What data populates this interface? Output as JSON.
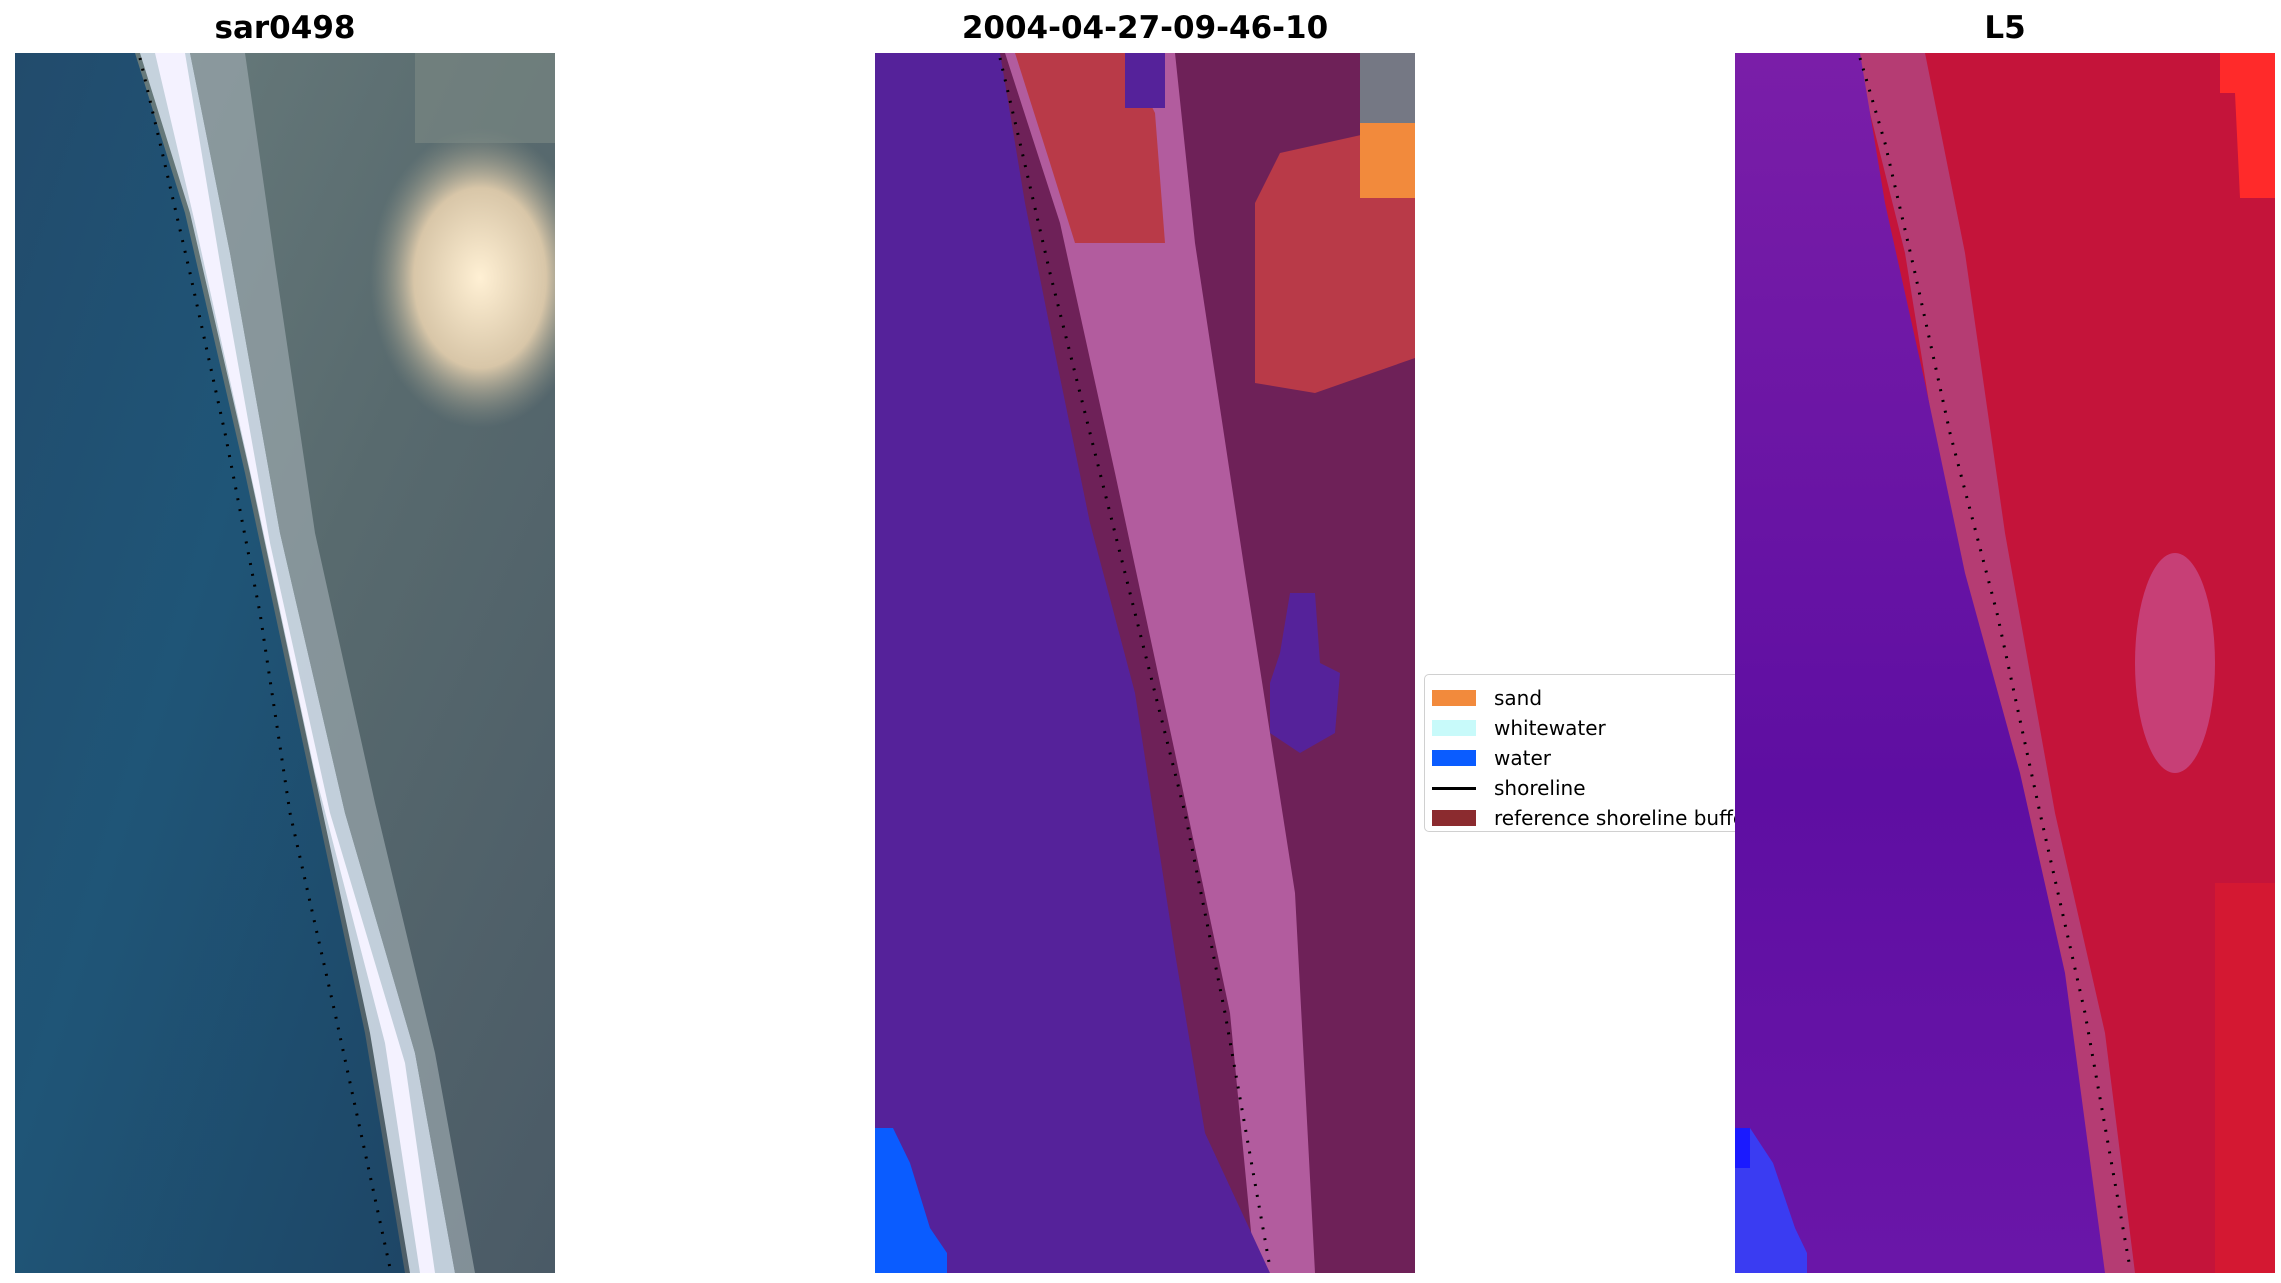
{
  "panels": [
    {
      "title": "sar0498"
    },
    {
      "title": "2004-04-27-09-46-10"
    },
    {
      "title": "L5"
    }
  ],
  "legend": {
    "items": [
      {
        "label": "sand",
        "color": "#f28a3c"
      },
      {
        "label": "whitewater",
        "color": "#c8fafa"
      },
      {
        "label": "water",
        "color": "#0a5cff"
      },
      {
        "label": "shoreline",
        "color": "#000000"
      },
      {
        "label": "reference shoreline buffer",
        "color": "#8b2b2f"
      }
    ]
  },
  "colors": {
    "water_dark": "#1e4868",
    "whitewater_rgb": "#f2f0ff",
    "land_grey": "#4b5e66",
    "class_water": "#55229a",
    "class_buffer": "#6e2158",
    "class_beach_pink": "#b25c9e",
    "class_sand_red": "#b93a48",
    "class_sand_orange": "#f28a3c",
    "class_water_blue": "#0a5cff",
    "l5_water": "#6a12a4",
    "l5_land": "#c4143a",
    "l5_bright": "#ff2a2a"
  }
}
